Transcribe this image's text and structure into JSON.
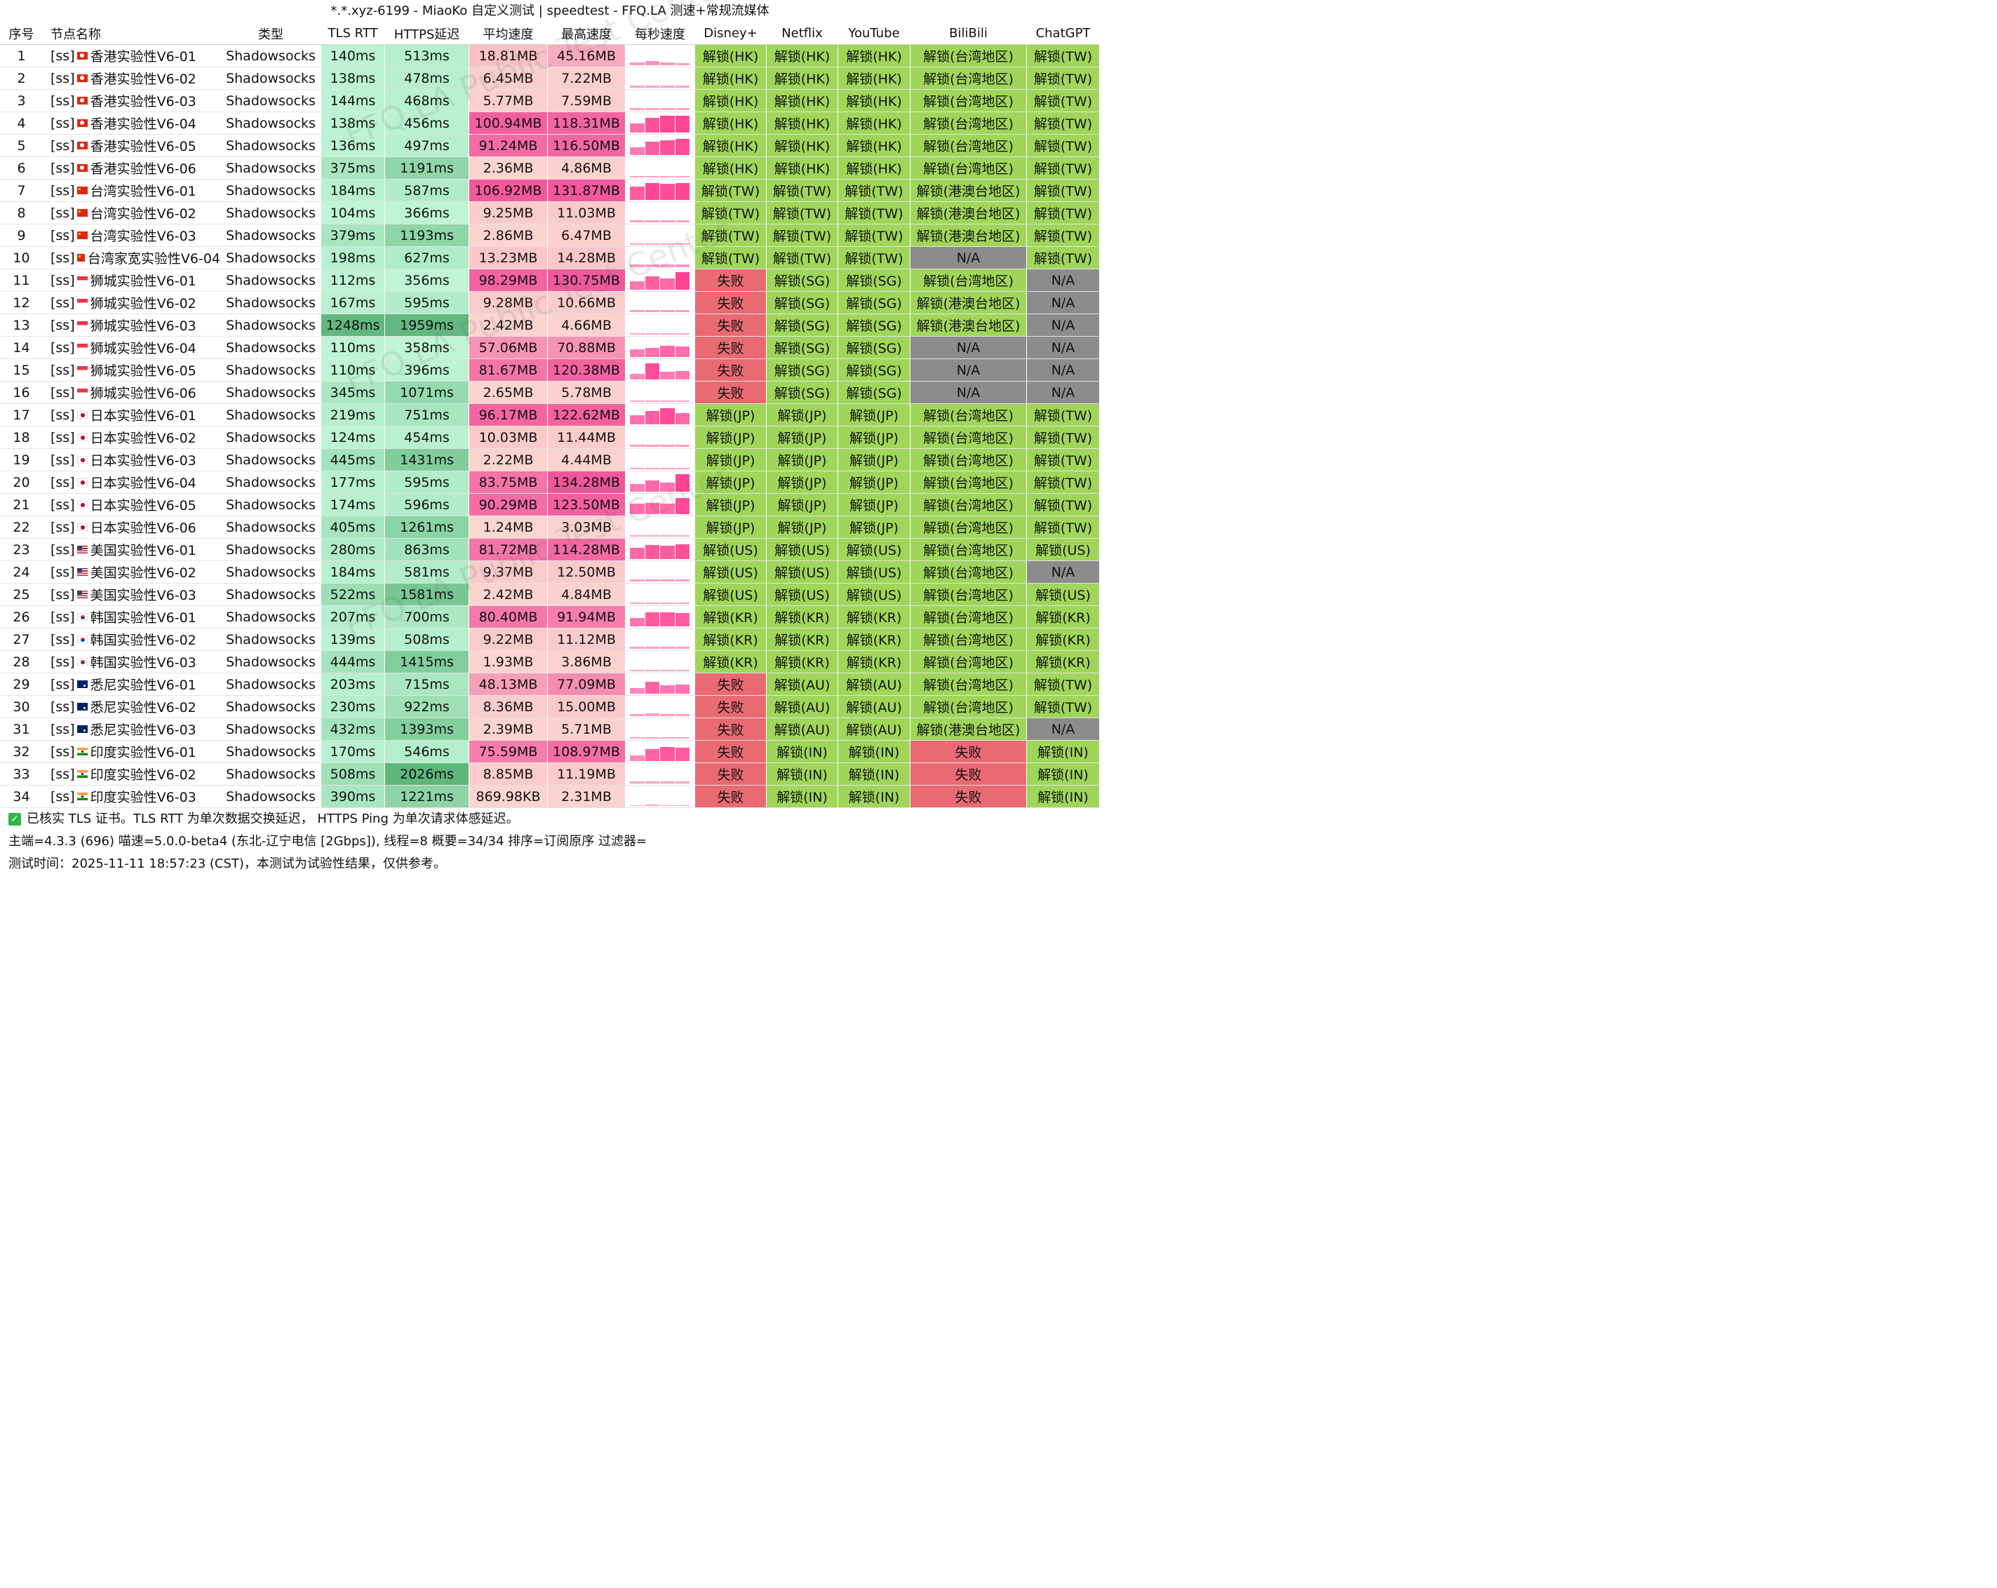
{
  "title": "*.*.xyz-6199 - MiaoKo 自定义测试 | speedtest - FFQ.LA 测速+常规流媒体",
  "headers": [
    "序号",
    "节点名称",
    "类型",
    "TLS RTT",
    "HTTPS延迟",
    "平均速度",
    "最高速度",
    "每秒速度",
    "Disney+",
    "Netflix",
    "YouTube",
    "BiliBili",
    "ChatGPT"
  ],
  "watermark": "FFQ.LA Public Test Center",
  "rows": [
    {
      "n": "1",
      "prefix": "[ss]",
      "flag": "hk",
      "name": "香港实验性V6-01",
      "type": "Shadowsocks",
      "rtt": "140ms",
      "https": "513ms",
      "avg": "18.81MB",
      "max": "45.16MB",
      "bars": [
        0.15,
        0.2,
        0.15,
        0.1
      ],
      "disney": "解锁(HK)",
      "netflix": "解锁(HK)",
      "youtube": "解锁(HK)",
      "bili": "解锁(台湾地区)",
      "gpt": "解锁(TW)"
    },
    {
      "n": "2",
      "prefix": "[ss]",
      "flag": "hk",
      "name": "香港实验性V6-02",
      "type": "Shadowsocks",
      "rtt": "138ms",
      "https": "478ms",
      "avg": "6.45MB",
      "max": "7.22MB",
      "bars": [
        0.08,
        0.08,
        0.08,
        0.08
      ],
      "disney": "解锁(HK)",
      "netflix": "解锁(HK)",
      "youtube": "解锁(HK)",
      "bili": "解锁(台湾地区)",
      "gpt": "解锁(TW)"
    },
    {
      "n": "3",
      "prefix": "[ss]",
      "flag": "hk",
      "name": "香港实验性V6-03",
      "type": "Shadowsocks",
      "rtt": "144ms",
      "https": "468ms",
      "avg": "5.77MB",
      "max": "7.59MB",
      "bars": [
        0.08,
        0.08,
        0.08,
        0.08
      ],
      "disney": "解锁(HK)",
      "netflix": "解锁(HK)",
      "youtube": "解锁(HK)",
      "bili": "解锁(台湾地区)",
      "gpt": "解锁(TW)"
    },
    {
      "n": "4",
      "prefix": "[ss]",
      "flag": "hk",
      "name": "香港实验性V6-04",
      "type": "Shadowsocks",
      "rtt": "138ms",
      "https": "456ms",
      "avg": "100.94MB",
      "max": "118.31MB",
      "bars": [
        0.5,
        0.8,
        0.9,
        0.9
      ],
      "disney": "解锁(HK)",
      "netflix": "解锁(HK)",
      "youtube": "解锁(HK)",
      "bili": "解锁(台湾地区)",
      "gpt": "解锁(TW)"
    },
    {
      "n": "5",
      "prefix": "[ss]",
      "flag": "hk",
      "name": "香港实验性V6-05",
      "type": "Shadowsocks",
      "rtt": "136ms",
      "https": "497ms",
      "avg": "91.24MB",
      "max": "116.50MB",
      "bars": [
        0.4,
        0.7,
        0.8,
        0.85
      ],
      "disney": "解锁(HK)",
      "netflix": "解锁(HK)",
      "youtube": "解锁(HK)",
      "bili": "解锁(台湾地区)",
      "gpt": "解锁(TW)"
    },
    {
      "n": "6",
      "prefix": "[ss]",
      "flag": "hk",
      "name": "香港实验性V6-06",
      "type": "Shadowsocks",
      "rtt": "375ms",
      "https": "1191ms",
      "avg": "2.36MB",
      "max": "4.86MB",
      "bars": [
        0.05,
        0.05,
        0.05,
        0.05
      ],
      "disney": "解锁(HK)",
      "netflix": "解锁(HK)",
      "youtube": "解锁(HK)",
      "bili": "解锁(台湾地区)",
      "gpt": "解锁(TW)"
    },
    {
      "n": "7",
      "prefix": "[ss]",
      "flag": "cn",
      "name": "台湾实验性V6-01",
      "type": "Shadowsocks",
      "rtt": "184ms",
      "https": "587ms",
      "avg": "106.92MB",
      "max": "131.87MB",
      "bars": [
        0.7,
        0.9,
        0.85,
        0.9
      ],
      "disney": "解锁(TW)",
      "netflix": "解锁(TW)",
      "youtube": "解锁(TW)",
      "bili": "解锁(港澳台地区)",
      "gpt": "解锁(TW)"
    },
    {
      "n": "8",
      "prefix": "[ss]",
      "flag": "cn",
      "name": "台湾实验性V6-02",
      "type": "Shadowsocks",
      "rtt": "104ms",
      "https": "366ms",
      "avg": "9.25MB",
      "max": "11.03MB",
      "bars": [
        0.1,
        0.1,
        0.1,
        0.1
      ],
      "disney": "解锁(TW)",
      "netflix": "解锁(TW)",
      "youtube": "解锁(TW)",
      "bili": "解锁(港澳台地区)",
      "gpt": "解锁(TW)"
    },
    {
      "n": "9",
      "prefix": "[ss]",
      "flag": "cn",
      "name": "台湾实验性V6-03",
      "type": "Shadowsocks",
      "rtt": "379ms",
      "https": "1193ms",
      "avg": "2.86MB",
      "max": "6.47MB",
      "bars": [
        0.05,
        0.06,
        0.05,
        0.05
      ],
      "disney": "解锁(TW)",
      "netflix": "解锁(TW)",
      "youtube": "解锁(TW)",
      "bili": "解锁(港澳台地区)",
      "gpt": "解锁(TW)"
    },
    {
      "n": "10",
      "prefix": "[ss]",
      "flag": "cn",
      "name": "台湾家宽实验性V6-04",
      "type": "Shadowsocks",
      "rtt": "198ms",
      "https": "627ms",
      "avg": "13.23MB",
      "max": "14.28MB",
      "bars": [
        0.12,
        0.12,
        0.12,
        0.12
      ],
      "disney": "解锁(TW)",
      "netflix": "解锁(TW)",
      "youtube": "解锁(TW)",
      "bili": "N/A",
      "gpt": "解锁(TW)"
    },
    {
      "n": "11",
      "prefix": "[ss]",
      "flag": "sg",
      "name": "狮城实验性V6-01",
      "type": "Shadowsocks",
      "rtt": "112ms",
      "https": "356ms",
      "avg": "98.29MB",
      "max": "130.75MB",
      "bars": [
        0.45,
        0.7,
        0.6,
        0.95
      ],
      "disney": "失败",
      "netflix": "解锁(SG)",
      "youtube": "解锁(SG)",
      "bili": "解锁(台湾地区)",
      "gpt": "N/A"
    },
    {
      "n": "12",
      "prefix": "[ss]",
      "flag": "sg",
      "name": "狮城实验性V6-02",
      "type": "Shadowsocks",
      "rtt": "167ms",
      "https": "595ms",
      "avg": "9.28MB",
      "max": "10.66MB",
      "bars": [
        0.1,
        0.1,
        0.1,
        0.1
      ],
      "disney": "失败",
      "netflix": "解锁(SG)",
      "youtube": "解锁(SG)",
      "bili": "解锁(港澳台地区)",
      "gpt": "N/A"
    },
    {
      "n": "13",
      "prefix": "[ss]",
      "flag": "sg",
      "name": "狮城实验性V6-03",
      "type": "Shadowsocks",
      "rtt": "1248ms",
      "https": "1959ms",
      "avg": "2.42MB",
      "max": "4.66MB",
      "bars": [
        0.05,
        0.05,
        0.05,
        0.05
      ],
      "disney": "失败",
      "netflix": "解锁(SG)",
      "youtube": "解锁(SG)",
      "bili": "解锁(港澳台地区)",
      "gpt": "N/A"
    },
    {
      "n": "14",
      "prefix": "[ss]",
      "flag": "sg",
      "name": "狮城实验性V6-04",
      "type": "Shadowsocks",
      "rtt": "110ms",
      "https": "358ms",
      "avg": "57.06MB",
      "max": "70.88MB",
      "bars": [
        0.4,
        0.5,
        0.6,
        0.55
      ],
      "disney": "失败",
      "netflix": "解锁(SG)",
      "youtube": "解锁(SG)",
      "bili": "N/A",
      "gpt": "N/A"
    },
    {
      "n": "15",
      "prefix": "[ss]",
      "flag": "sg",
      "name": "狮城实验性V6-05",
      "type": "Shadowsocks",
      "rtt": "110ms",
      "https": "396ms",
      "avg": "81.67MB",
      "max": "120.38MB",
      "bars": [
        0.3,
        0.85,
        0.4,
        0.45
      ],
      "disney": "失败",
      "netflix": "解锁(SG)",
      "youtube": "解锁(SG)",
      "bili": "N/A",
      "gpt": "N/A"
    },
    {
      "n": "16",
      "prefix": "[ss]",
      "flag": "sg",
      "name": "狮城实验性V6-06",
      "type": "Shadowsocks",
      "rtt": "345ms",
      "https": "1071ms",
      "avg": "2.65MB",
      "max": "5.78MB",
      "bars": [
        0.05,
        0.05,
        0.05,
        0.05
      ],
      "disney": "失败",
      "netflix": "解锁(SG)",
      "youtube": "解锁(SG)",
      "bili": "N/A",
      "gpt": "N/A"
    },
    {
      "n": "17",
      "prefix": "[ss]",
      "flag": "jp",
      "name": "日本实验性V6-01",
      "type": "Shadowsocks",
      "rtt": "219ms",
      "https": "751ms",
      "avg": "96.17MB",
      "max": "122.62MB",
      "bars": [
        0.5,
        0.7,
        0.85,
        0.6
      ],
      "disney": "解锁(JP)",
      "netflix": "解锁(JP)",
      "youtube": "解锁(JP)",
      "bili": "解锁(台湾地区)",
      "gpt": "解锁(TW)"
    },
    {
      "n": "18",
      "prefix": "[ss]",
      "flag": "jp",
      "name": "日本实验性V6-02",
      "type": "Shadowsocks",
      "rtt": "124ms",
      "https": "454ms",
      "avg": "10.03MB",
      "max": "11.44MB",
      "bars": [
        0.1,
        0.1,
        0.1,
        0.1
      ],
      "disney": "解锁(JP)",
      "netflix": "解锁(JP)",
      "youtube": "解锁(JP)",
      "bili": "解锁(台湾地区)",
      "gpt": "解锁(TW)"
    },
    {
      "n": "19",
      "prefix": "[ss]",
      "flag": "jp",
      "name": "日本实验性V6-03",
      "type": "Shadowsocks",
      "rtt": "445ms",
      "https": "1431ms",
      "avg": "2.22MB",
      "max": "4.44MB",
      "bars": [
        0.05,
        0.05,
        0.05,
        0.05
      ],
      "disney": "解锁(JP)",
      "netflix": "解锁(JP)",
      "youtube": "解锁(JP)",
      "bili": "解锁(台湾地区)",
      "gpt": "解锁(TW)"
    },
    {
      "n": "20",
      "prefix": "[ss]",
      "flag": "jp",
      "name": "日本实验性V6-04",
      "type": "Shadowsocks",
      "rtt": "177ms",
      "https": "595ms",
      "avg": "83.75MB",
      "max": "134.28MB",
      "bars": [
        0.4,
        0.6,
        0.5,
        0.95
      ],
      "disney": "解锁(JP)",
      "netflix": "解锁(JP)",
      "youtube": "解锁(JP)",
      "bili": "解锁(台湾地区)",
      "gpt": "解锁(TW)"
    },
    {
      "n": "21",
      "prefix": "[ss]",
      "flag": "jp",
      "name": "日本实验性V6-05",
      "type": "Shadowsocks",
      "rtt": "174ms",
      "https": "596ms",
      "avg": "90.29MB",
      "max": "123.50MB",
      "bars": [
        0.55,
        0.6,
        0.55,
        0.85
      ],
      "disney": "解锁(JP)",
      "netflix": "解锁(JP)",
      "youtube": "解锁(JP)",
      "bili": "解锁(台湾地区)",
      "gpt": "解锁(TW)"
    },
    {
      "n": "22",
      "prefix": "[ss]",
      "flag": "jp",
      "name": "日本实验性V6-06",
      "type": "Shadowsocks",
      "rtt": "405ms",
      "https": "1261ms",
      "avg": "1.24MB",
      "max": "3.03MB",
      "bars": [
        0.04,
        0.04,
        0.04,
        0.04
      ],
      "disney": "解锁(JP)",
      "netflix": "解锁(JP)",
      "youtube": "解锁(JP)",
      "bili": "解锁(台湾地区)",
      "gpt": "解锁(TW)"
    },
    {
      "n": "23",
      "prefix": "[ss]",
      "flag": "us",
      "name": "美国实验性V6-01",
      "type": "Shadowsocks",
      "rtt": "280ms",
      "https": "863ms",
      "avg": "81.72MB",
      "max": "114.28MB",
      "bars": [
        0.6,
        0.75,
        0.7,
        0.8
      ],
      "disney": "解锁(US)",
      "netflix": "解锁(US)",
      "youtube": "解锁(US)",
      "bili": "解锁(台湾地区)",
      "gpt": "解锁(US)"
    },
    {
      "n": "24",
      "prefix": "[ss]",
      "flag": "us",
      "name": "美国实验性V6-02",
      "type": "Shadowsocks",
      "rtt": "184ms",
      "https": "581ms",
      "avg": "9.37MB",
      "max": "12.50MB",
      "bars": [
        0.1,
        0.1,
        0.1,
        0.1
      ],
      "disney": "解锁(US)",
      "netflix": "解锁(US)",
      "youtube": "解锁(US)",
      "bili": "解锁(台湾地区)",
      "gpt": "N/A"
    },
    {
      "n": "25",
      "prefix": "[ss]",
      "flag": "us",
      "name": "美国实验性V6-03",
      "type": "Shadowsocks",
      "rtt": "522ms",
      "https": "1581ms",
      "avg": "2.42MB",
      "max": "4.84MB",
      "bars": [
        0.05,
        0.05,
        0.05,
        0.05
      ],
      "disney": "解锁(US)",
      "netflix": "解锁(US)",
      "youtube": "解锁(US)",
      "bili": "解锁(台湾地区)",
      "gpt": "解锁(US)"
    },
    {
      "n": "26",
      "prefix": "[ss]",
      "flag": "kr",
      "name": "韩国实验性V6-01",
      "type": "Shadowsocks",
      "rtt": "207ms",
      "https": "700ms",
      "avg": "80.40MB",
      "max": "91.94MB",
      "bars": [
        0.45,
        0.75,
        0.75,
        0.7
      ],
      "disney": "解锁(KR)",
      "netflix": "解锁(KR)",
      "youtube": "解锁(KR)",
      "bili": "解锁(台湾地区)",
      "gpt": "解锁(KR)"
    },
    {
      "n": "27",
      "prefix": "[ss]",
      "flag": "kr",
      "name": "韩国实验性V6-02",
      "type": "Shadowsocks",
      "rtt": "139ms",
      "https": "508ms",
      "avg": "9.22MB",
      "max": "11.12MB",
      "bars": [
        0.1,
        0.1,
        0.1,
        0.1
      ],
      "disney": "解锁(KR)",
      "netflix": "解锁(KR)",
      "youtube": "解锁(KR)",
      "bili": "解锁(台湾地区)",
      "gpt": "解锁(KR)"
    },
    {
      "n": "28",
      "prefix": "[ss]",
      "flag": "kr",
      "name": "韩国实验性V6-03",
      "type": "Shadowsocks",
      "rtt": "444ms",
      "https": "1415ms",
      "avg": "1.93MB",
      "max": "3.86MB",
      "bars": [
        0.04,
        0.04,
        0.04,
        0.04
      ],
      "disney": "解锁(KR)",
      "netflix": "解锁(KR)",
      "youtube": "解锁(KR)",
      "bili": "解锁(台湾地区)",
      "gpt": "解锁(KR)"
    },
    {
      "n": "29",
      "prefix": "[ss]",
      "flag": "au",
      "name": "悉尼实验性V6-01",
      "type": "Shadowsocks",
      "rtt": "203ms",
      "https": "715ms",
      "avg": "48.13MB",
      "max": "77.09MB",
      "bars": [
        0.3,
        0.65,
        0.45,
        0.5
      ],
      "disney": "失败",
      "netflix": "解锁(AU)",
      "youtube": "解锁(AU)",
      "bili": "解锁(台湾地区)",
      "gpt": "解锁(TW)"
    },
    {
      "n": "30",
      "prefix": "[ss]",
      "flag": "au",
      "name": "悉尼实验性V6-02",
      "type": "Shadowsocks",
      "rtt": "230ms",
      "https": "922ms",
      "avg": "8.36MB",
      "max": "15.00MB",
      "bars": [
        0.08,
        0.12,
        0.1,
        0.08
      ],
      "disney": "失败",
      "netflix": "解锁(AU)",
      "youtube": "解锁(AU)",
      "bili": "解锁(台湾地区)",
      "gpt": "解锁(TW)"
    },
    {
      "n": "31",
      "prefix": "[ss]",
      "flag": "au",
      "name": "悉尼实验性V6-03",
      "type": "Shadowsocks",
      "rtt": "432ms",
      "https": "1393ms",
      "avg": "2.39MB",
      "max": "5.71MB",
      "bars": [
        0.05,
        0.05,
        0.05,
        0.05
      ],
      "disney": "失败",
      "netflix": "解锁(AU)",
      "youtube": "解锁(AU)",
      "bili": "解锁(港澳台地区)",
      "gpt": "N/A"
    },
    {
      "n": "32",
      "prefix": "[ss]",
      "flag": "in",
      "name": "印度实验性V6-01",
      "type": "Shadowsocks",
      "rtt": "170ms",
      "https": "546ms",
      "avg": "75.59MB",
      "max": "108.97MB",
      "bars": [
        0.3,
        0.65,
        0.75,
        0.7
      ],
      "disney": "失败",
      "netflix": "解锁(IN)",
      "youtube": "解锁(IN)",
      "bili": "失败",
      "gpt": "解锁(IN)"
    },
    {
      "n": "33",
      "prefix": "[ss]",
      "flag": "in",
      "name": "印度实验性V6-02",
      "type": "Shadowsocks",
      "rtt": "508ms",
      "https": "2026ms",
      "avg": "8.85MB",
      "max": "11.19MB",
      "bars": [
        0.1,
        0.1,
        0.1,
        0.1
      ],
      "disney": "失败",
      "netflix": "解锁(IN)",
      "youtube": "解锁(IN)",
      "bili": "失败",
      "gpt": "解锁(IN)"
    },
    {
      "n": "34",
      "prefix": "[ss]",
      "flag": "in",
      "name": "印度实验性V6-03",
      "type": "Shadowsocks",
      "rtt": "390ms",
      "https": "1221ms",
      "avg": "869.98KB",
      "max": "2.31MB",
      "bars": [
        0.03,
        0.04,
        0.03,
        0.03
      ],
      "disney": "失败",
      "netflix": "解锁(IN)",
      "youtube": "解锁(IN)",
      "bili": "失败",
      "gpt": "解锁(IN)"
    }
  ],
  "footer": {
    "note": "已核实 TLS 证书。TLS RTT 为单次数据交换延迟， HTTPS Ping 为单次请求体感延迟。",
    "info": "主端=4.3.3 (696) 喵速=5.0.0-beta4 (东北-辽宁电信 [2Gbps]), 线程=8 概要=34/34 排序=订阅原序 过滤器=",
    "time": "测试时间：2025-11-11 18:57:23 (CST)，本测试为试验性结果，仅供参考。"
  },
  "colors": {
    "green_light": "#bff5d5",
    "green_dark": "#5db57a",
    "pink_light": "#fbd6d0",
    "pink_dark": "#f2559a",
    "unlock": "#9fd65a",
    "fail": "#ea6a73",
    "na": "#8c8c8f",
    "speed_bar": "#ff3c8e"
  }
}
